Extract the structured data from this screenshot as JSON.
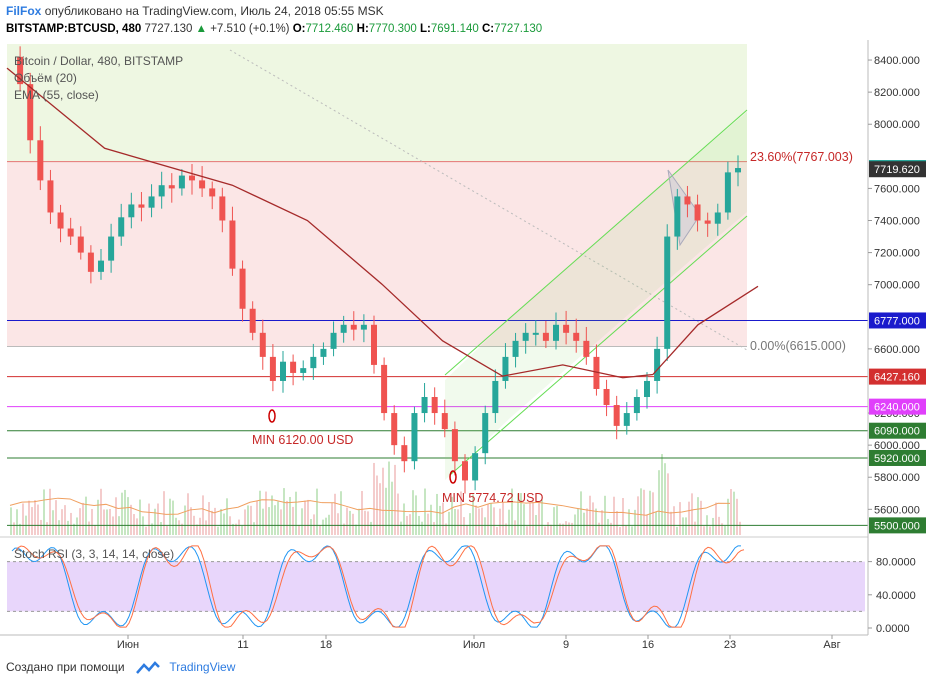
{
  "header": {
    "brand": "FilFox",
    "published": "опубликовано на TradingView.com, Июль 24, 2018 05:55 MSK",
    "symbol": "BITSTAMP:BTCUSD, 480",
    "last_price": "7727.130",
    "change": "+7.510 (+0.1%)",
    "o_label": "O:",
    "o_value": "7712.460",
    "h_label": "H:",
    "h_value": "7770.300",
    "l_label": "L:",
    "l_value": "7691.140",
    "c_label": "C:",
    "c_value": "7727.130"
  },
  "legend": {
    "series_title": "Bitcoin / Dollar, 480, BITSTAMP",
    "volume_title": "Объём (20)",
    "ema_title": "EMA (55, close)",
    "stoch_title": "Stoch RSI (3, 3, 14, 14, close)"
  },
  "annotations": {
    "min1": "MIN 6120.00 USD",
    "min2": "MIN 5774.72 USD",
    "fib_236": "23.60%(7767.003)",
    "fib_0": "0.00%(6615.000)"
  },
  "footer": {
    "created_with": "Создано при помощи",
    "tradingview": "TradingView"
  },
  "colors": {
    "up": "#26a69a",
    "down": "#ef5350",
    "ema": "#a52a2a",
    "blue_level": "#1a1acc",
    "red_level": "#d32f2f",
    "magenta_level": "#e040fb",
    "green_level": "#2e7d32",
    "channel": "#66dd55"
  },
  "chart_data": {
    "type": "candlestick",
    "price_axis": {
      "ticks": [
        8400,
        8200,
        8000,
        7600,
        7400,
        7200,
        7000,
        6600,
        6200,
        6000,
        5800,
        5600
      ],
      "tick_labels": [
        "8400.000",
        "8200.000",
        "8000.000",
        "7600.000",
        "7400.000",
        "7200.000",
        "7000.000",
        "6600.000",
        "6200.000",
        "6000.000",
        "5800.000",
        "5600.000"
      ],
      "ylim": [
        5440,
        8500
      ]
    },
    "time_axis": {
      "labels": [
        "Июн",
        "11",
        "18",
        "Июл",
        "9",
        "16",
        "23",
        "Авг"
      ]
    },
    "price_labels": [
      {
        "value": 7727.13,
        "text": "7727.130",
        "color": "#26a69a"
      },
      {
        "value": 7719.62,
        "text": "7719.620",
        "color": "#333333"
      },
      {
        "value": 6777.0,
        "text": "6777.000",
        "color": "#1a1acc"
      },
      {
        "value": 6427.16,
        "text": "6427.160",
        "color": "#d32f2f"
      },
      {
        "value": 6240.0,
        "text": "6240.000",
        "color": "#e040fb"
      },
      {
        "value": 6090.0,
        "text": "6090.000",
        "color": "#2e7d32"
      },
      {
        "value": 5920.0,
        "text": "5920.000",
        "color": "#2e7d32"
      },
      {
        "value": 5500.0,
        "text": "5500.000",
        "color": "#2e7d32"
      }
    ],
    "horizontal_levels": [
      {
        "value": 6777.0,
        "color": "#1a1acc"
      },
      {
        "value": 6427.16,
        "color": "#d32f2f"
      },
      {
        "value": 6240.0,
        "color": "#e040fb"
      },
      {
        "value": 6090.0,
        "color": "#2e7d32"
      },
      {
        "value": 5920.0,
        "color": "#2e7d32"
      },
      {
        "value": 5500.0,
        "color": "#2e7d32"
      }
    ],
    "fib_levels": [
      {
        "value": 7767.0,
        "label": "23.60%(7767.003)"
      },
      {
        "value": 6615.0,
        "label": "0.00%(6615.000)"
      }
    ],
    "candle_close_path": [
      8420,
      8250,
      7900,
      7650,
      7450,
      7350,
      7300,
      7200,
      7080,
      7150,
      7300,
      7420,
      7500,
      7480,
      7550,
      7620,
      7600,
      7680,
      7650,
      7600,
      7550,
      7400,
      7100,
      6850,
      6700,
      6550,
      6400,
      6520,
      6450,
      6480,
      6550,
      6600,
      6700,
      6750,
      6720,
      6750,
      6500,
      6200,
      6000,
      5900,
      6200,
      6300,
      6200,
      6100,
      5900,
      5780,
      5950,
      6200,
      6400,
      6550,
      6650,
      6700,
      6700,
      6650,
      6750,
      6700,
      6650,
      6550,
      6350,
      6250,
      6120,
      6200,
      6300,
      6400,
      6600,
      7300,
      7550,
      7500,
      7400,
      7380,
      7450,
      7700,
      7727
    ],
    "ema_points": [
      [
        0,
        8350
      ],
      [
        0.13,
        7850
      ],
      [
        0.3,
        7620
      ],
      [
        0.4,
        7400
      ],
      [
        0.5,
        7000
      ],
      [
        0.58,
        6650
      ],
      [
        0.66,
        6430
      ],
      [
        0.74,
        6500
      ],
      [
        0.82,
        6420
      ],
      [
        0.86,
        6440
      ],
      [
        0.92,
        6750
      ],
      [
        1.0,
        6990
      ]
    ],
    "stoch_axis": {
      "ticks": [
        80,
        40,
        0
      ],
      "tick_labels": [
        "80.0000",
        "40.0000",
        "0.0000"
      ],
      "band": [
        20,
        80
      ]
    }
  }
}
